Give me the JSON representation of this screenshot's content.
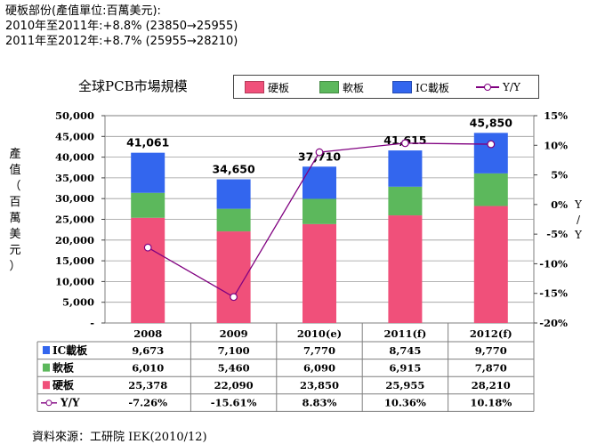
{
  "header": {
    "line1": "硬板部份(產值單位:百萬美元):",
    "line2": "2010年至2011年:+8.8%  (23850→25955)",
    "line3": "2011年至2012年:+8.7%  (25955→28210)"
  },
  "source": "資料來源：工研院 IEK(2010/12)",
  "colors": {
    "rigid": "#f0507a",
    "flex": "#5cb85c",
    "ic": "#3366ee",
    "yy": "#800080"
  },
  "chart_data": {
    "type": "bar",
    "stacked": true,
    "title": "全球PCB市場規模",
    "ylabel": "產值（百萬美元）",
    "y2label": "Y/Y",
    "ylim": [
      0,
      50000
    ],
    "y2lim": [
      -20,
      15
    ],
    "yticks": [
      "-",
      "5,000",
      "10,000",
      "15,000",
      "20,000",
      "25,000",
      "30,000",
      "35,000",
      "40,000",
      "45,000",
      "50,000"
    ],
    "y2ticks": [
      "-20%",
      "-15%",
      "-10%",
      "-5%",
      "0%",
      "5%",
      "10%",
      "15%"
    ],
    "categories": [
      "2008",
      "2009",
      "2010(e)",
      "2011(f)",
      "2012(f)"
    ],
    "series": [
      {
        "name": "硬板",
        "values": [
          25378,
          22090,
          23850,
          25955,
          28210
        ]
      },
      {
        "name": "軟板",
        "values": [
          6010,
          5460,
          6090,
          6915,
          7870
        ]
      },
      {
        "name": "IC載板",
        "values": [
          9673,
          7100,
          7770,
          8745,
          9770
        ]
      }
    ],
    "totals": [
      "41,061",
      "34,650",
      "37,710",
      "41,615",
      "45,850"
    ],
    "yy": {
      "name": "Y/Y",
      "values": [
        -7.26,
        -15.61,
        8.83,
        10.36,
        10.18
      ]
    },
    "table": [
      {
        "label": "IC載板",
        "cells": [
          "9,673",
          "7,100",
          "7,770",
          "8,745",
          "9,770"
        ]
      },
      {
        "label": "軟板",
        "cells": [
          "6,010",
          "5,460",
          "6,090",
          "6,915",
          "7,870"
        ]
      },
      {
        "label": "硬板",
        "cells": [
          "25,378",
          "22,090",
          "23,850",
          "25,955",
          "28,210"
        ]
      },
      {
        "label": "Y/Y",
        "cells": [
          "-7.26%",
          "-15.61%",
          "8.83%",
          "10.36%",
          "10.18%"
        ]
      }
    ]
  }
}
